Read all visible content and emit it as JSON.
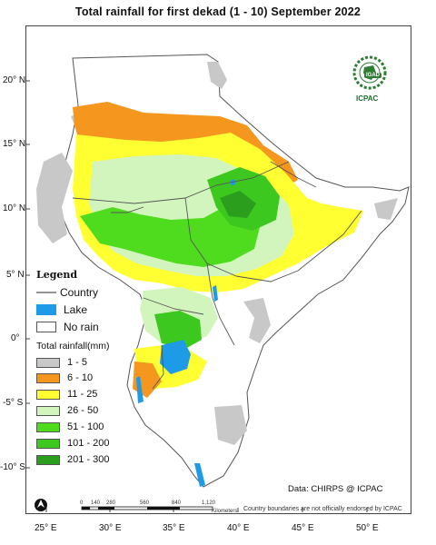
{
  "title": "Total rainfall  for  first  dekad  (1 - 10)  September 2022",
  "map": {
    "lat_ticks": [
      "20° N",
      "15° N",
      "10° N",
      "5° N",
      "0°",
      "-5° S",
      "-10° S"
    ],
    "lon_ticks": [
      "25° E",
      "30° E",
      "35° E",
      "40° E",
      "45° E",
      "50° E"
    ]
  },
  "logo": {
    "org1": "IGAD",
    "org2": "ICPAC"
  },
  "legend": {
    "title": "Legend",
    "country": "Country",
    "lake": "Lake",
    "norain": "No rain",
    "subtitle": "Total rainfall(mm)",
    "classes": [
      {
        "label": "1 - 5",
        "color": "#c8c8c8"
      },
      {
        "label": "6 - 10",
        "color": "#f5961e"
      },
      {
        "label": "11 - 25",
        "color": "#ffff32"
      },
      {
        "label": "26 - 50",
        "color": "#d2f5be"
      },
      {
        "label": "51 - 100",
        "color": "#50dc1e"
      },
      {
        "label": "101 - 200",
        "color": "#3cc81e"
      },
      {
        "label": "201 - 300",
        "color": "#2b9e1e"
      }
    ],
    "lake_color": "#1e9be6"
  },
  "credit": "Data: CHIRPS @ ICPAC",
  "scalebar": {
    "ticks": [
      "0",
      "140",
      "280",
      "560",
      "840",
      "1,120"
    ],
    "unit": "Kilometers"
  },
  "disclaimer": "Country boundaries are not officially endorsed by ICPAC"
}
